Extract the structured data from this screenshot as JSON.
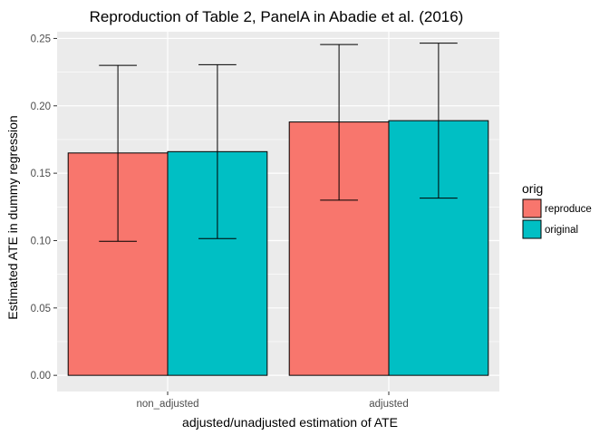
{
  "chart_data": {
    "type": "bar",
    "title": "Reproduction of Table 2, PanelA in Abadie et al. (2016)",
    "xlabel": "adjusted/unadjusted estimation of ATE",
    "ylabel": "Estimated ATE in dummy regression",
    "categories": [
      "non_adjusted",
      "adjusted"
    ],
    "ylim": [
      -0.012,
      0.255
    ],
    "y_ticks": [
      "0.00",
      "0.05",
      "0.10",
      "0.15",
      "0.20",
      "0.25"
    ],
    "y_tick_values": [
      0,
      0.05,
      0.1,
      0.15,
      0.2,
      0.25
    ],
    "grid": true,
    "legend": {
      "title": "orig",
      "placement": "right"
    },
    "series": [
      {
        "name": "reproduce",
        "color": "#F8766D",
        "values": [
          0.165,
          0.188
        ],
        "error_low": [
          0.0995,
          0.13
        ],
        "error_high": [
          0.23,
          0.2455
        ]
      },
      {
        "name": "original",
        "color": "#00BFC4",
        "values": [
          0.166,
          0.189
        ],
        "error_low": [
          0.1015,
          0.1315
        ],
        "error_high": [
          0.2305,
          0.2465
        ]
      }
    ]
  }
}
